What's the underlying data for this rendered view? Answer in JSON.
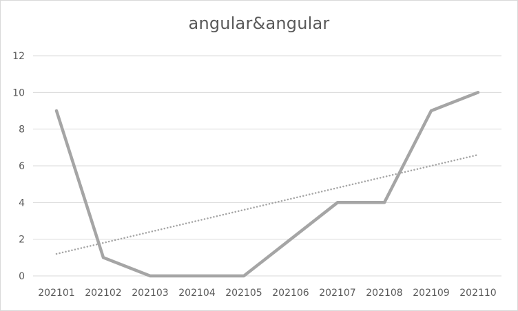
{
  "chart_data": {
    "type": "line",
    "title": "angular&angular",
    "xlabel": "",
    "ylabel": "",
    "categories": [
      "202101",
      "202102",
      "202103",
      "202104",
      "202105",
      "202106",
      "202107",
      "202108",
      "202109",
      "202110"
    ],
    "series": [
      {
        "values": [
          9,
          1,
          0,
          0,
          0,
          2,
          4,
          4,
          9,
          10
        ],
        "color": "#a5a5a5",
        "style": "solid"
      },
      {
        "trendline": "linear",
        "values": [
          1.2,
          1.8,
          2.4,
          3.0,
          3.6,
          4.2,
          4.8,
          5.4,
          6.0,
          6.6
        ],
        "color": "#a5a5a5",
        "style": "dotted"
      }
    ],
    "yticks": [
      0,
      2,
      4,
      6,
      8,
      10,
      12
    ],
    "ylim": [
      0,
      12
    ],
    "grid": "horizontal",
    "legend": "none"
  }
}
